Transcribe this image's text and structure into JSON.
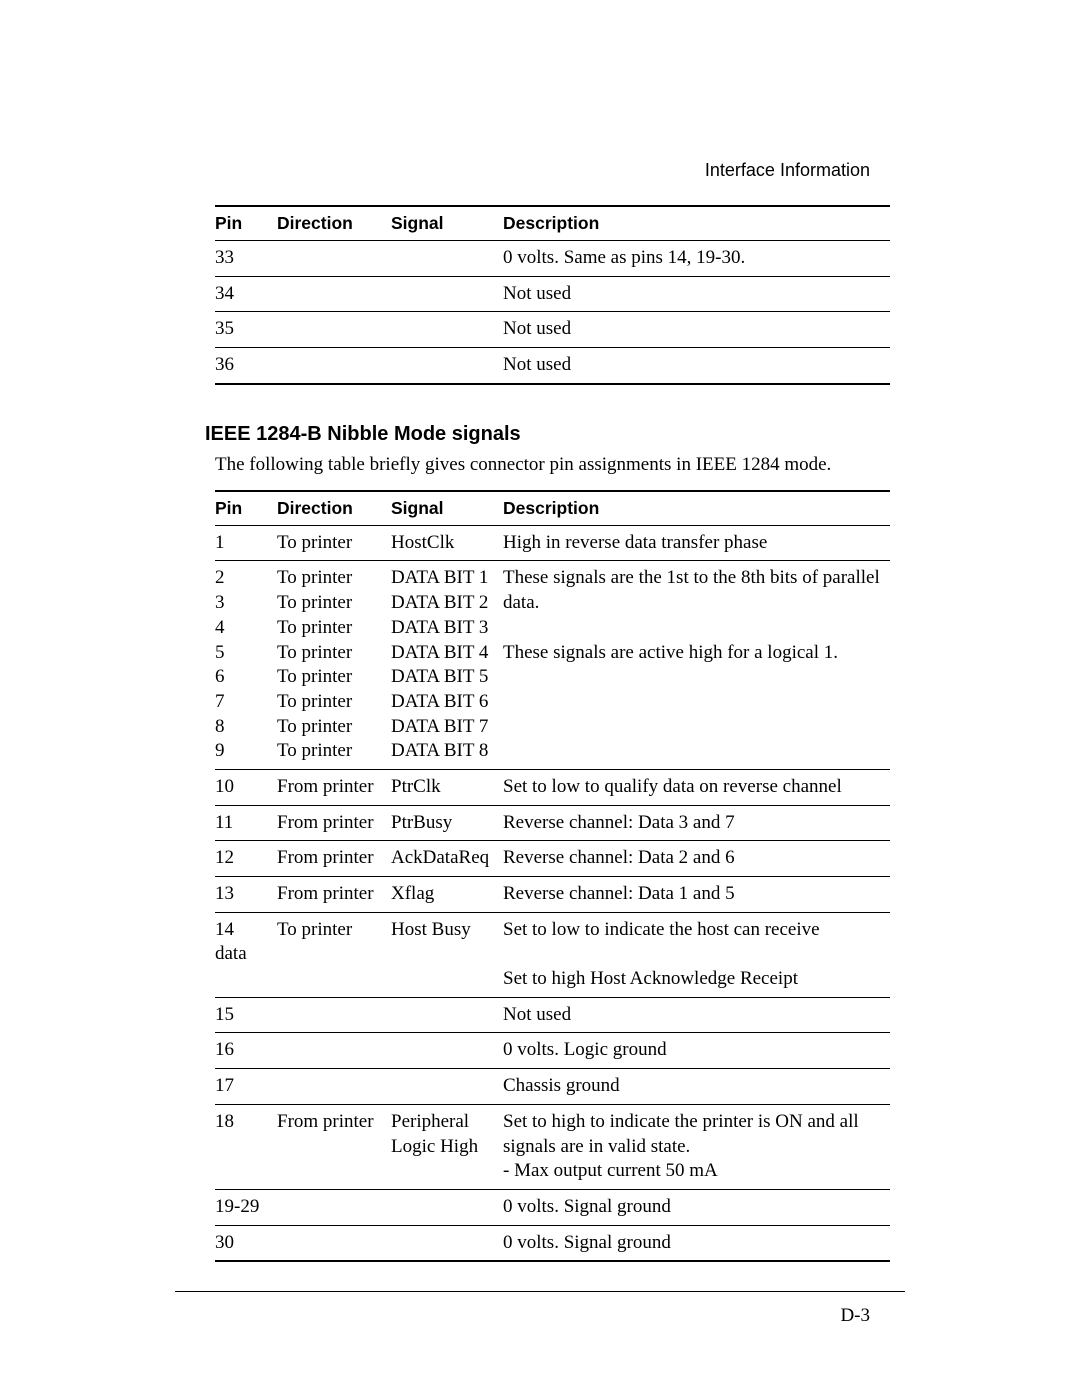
{
  "header": {
    "title": "Interface Information"
  },
  "table1": {
    "columns": [
      "Pin",
      "Direction",
      "Signal",
      "Description"
    ],
    "rows": [
      {
        "pin": "33",
        "dir": "",
        "sig": "",
        "desc": "0 volts. Same as pins 14, 19-30."
      },
      {
        "pin": "34",
        "dir": "",
        "sig": "",
        "desc": "Not used"
      },
      {
        "pin": "35",
        "dir": "",
        "sig": "",
        "desc": "Not used"
      },
      {
        "pin": "36",
        "dir": "",
        "sig": "",
        "desc": "Not used"
      }
    ]
  },
  "section": {
    "heading": "IEEE 1284-B Nibble Mode signals",
    "lead": "The following table briefly gives connector pin assignments in IEEE 1284 mode."
  },
  "table2": {
    "columns": [
      "Pin",
      "Direction",
      "Signal",
      "Description"
    ],
    "r1": {
      "pin": "1",
      "dir": "To printer",
      "sig": "HostClk",
      "desc": "High in reverse data transfer phase"
    },
    "block": {
      "pins": [
        "2",
        "3",
        "4",
        "5",
        "6",
        "7",
        "8",
        "9"
      ],
      "dirs": [
        "To printer",
        "To printer",
        "To printer",
        "To printer",
        "To printer",
        "To printer",
        "To printer",
        "To printer"
      ],
      "sigs": [
        "DATA BIT 1",
        "DATA BIT 2",
        "DATA BIT 3",
        "DATA BIT 4",
        "DATA BIT 5",
        "DATA BIT 6",
        "DATA BIT 7",
        "DATA BIT 8"
      ],
      "desc_top": "These signals are the 1st to the 8th bits of parallel data.",
      "desc_mid": "These signals are active high for a logical 1."
    },
    "r10": {
      "pin": "10",
      "dir": "From printer",
      "sig": "PtrClk",
      "desc": "Set to low to qualify data on reverse channel"
    },
    "r11": {
      "pin": "11",
      "dir": "From printer",
      "sig": "PtrBusy",
      "desc": "Reverse channel: Data 3 and 7"
    },
    "r12": {
      "pin": "12",
      "dir": "From printer",
      "sig": "AckDataReq",
      "desc": "Reverse channel: Data 2 and 6"
    },
    "r13": {
      "pin": "13",
      "dir": "From printer",
      "sig": "Xflag",
      "desc": "Reverse channel: Data 1 and 5"
    },
    "r14": {
      "pin": "14\ndata",
      "dir": "To printer",
      "sig": "Host Busy",
      "desc": "Set to low to indicate the host can receive\n\nSet to high Host Acknowledge Receipt"
    },
    "r15": {
      "pin": "15",
      "dir": "",
      "sig": "",
      "desc": "Not used"
    },
    "r16": {
      "pin": "16",
      "dir": "",
      "sig": "",
      "desc": "0 volts. Logic ground"
    },
    "r17": {
      "pin": "17",
      "dir": "",
      "sig": "",
      "desc": "Chassis ground"
    },
    "r18": {
      "pin": "18",
      "dir": "From printer",
      "sig": "Peripheral Logic High",
      "desc": "Set to high to indicate the printer is ON and all signals are in valid state.\n- Max output current 50 mA"
    },
    "r19": {
      "pin": "19-29",
      "dir": "",
      "sig": "",
      "desc": "0 volts. Signal ground"
    },
    "r30": {
      "pin": "30",
      "dir": "",
      "sig": "",
      "desc": "0 volts. Signal ground"
    }
  },
  "footer": {
    "page": "D-3"
  }
}
